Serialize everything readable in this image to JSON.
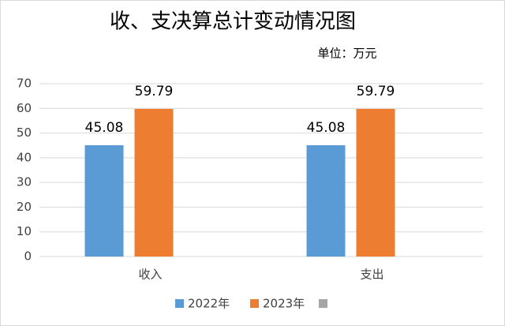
{
  "chart_data": {
    "type": "bar",
    "title": "收、支决算总计变动情况图",
    "subtitle": "单位：万元",
    "categories": [
      "收入",
      "支出"
    ],
    "series": [
      {
        "name": "2022年",
        "color": "#5b9bd5",
        "values": [
          45.08,
          45.08
        ]
      },
      {
        "name": "2023年",
        "color": "#ed7d31",
        "values": [
          59.79,
          59.79
        ]
      }
    ],
    "ylim": [
      0,
      70
    ],
    "yticks": [
      0,
      10,
      20,
      30,
      40,
      50,
      60,
      70
    ],
    "grid": true
  }
}
